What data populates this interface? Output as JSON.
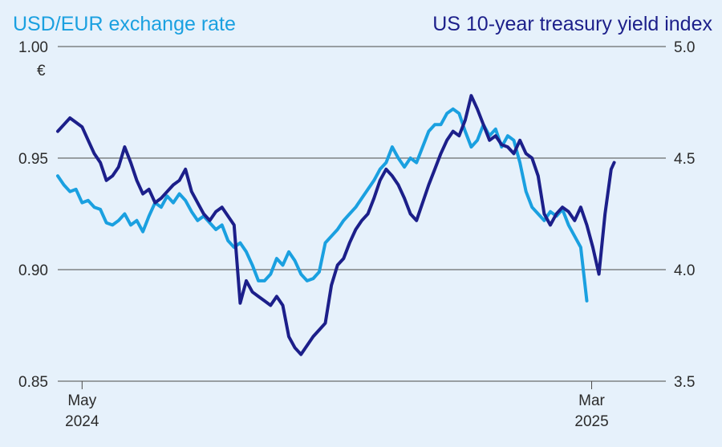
{
  "chart_data": {
    "type": "line",
    "left_title": "USD/EUR exchange rate",
    "right_title": "US 10-year treasury yield index",
    "left_unit": "€",
    "left_axis": {
      "min": 0.85,
      "max": 1.0,
      "ticks": [
        "1.00",
        "0.95",
        "0.90",
        "0.85"
      ]
    },
    "right_axis": {
      "min": 3.5,
      "max": 5.0,
      "ticks": [
        "5.0",
        "4.5",
        "4.0",
        "3.5"
      ]
    },
    "x_labels": [
      {
        "month": "May",
        "year": "2024",
        "t": 0.04
      },
      {
        "month": "Mar",
        "year": "2025",
        "t": 0.878
      }
    ],
    "grid": "horizontal",
    "colors": {
      "exchange": "#1aa0e0",
      "treasury": "#1c1f8a",
      "grid": "#4a4a4a",
      "background": "#e6f1fb"
    },
    "series": [
      {
        "name": "USD/EUR exchange rate",
        "axis": "left",
        "points": [
          [
            0.0,
            0.942
          ],
          [
            0.01,
            0.938
          ],
          [
            0.02,
            0.935
          ],
          [
            0.03,
            0.936
          ],
          [
            0.04,
            0.93
          ],
          [
            0.05,
            0.931
          ],
          [
            0.06,
            0.928
          ],
          [
            0.07,
            0.927
          ],
          [
            0.08,
            0.921
          ],
          [
            0.09,
            0.92
          ],
          [
            0.1,
            0.922
          ],
          [
            0.11,
            0.925
          ],
          [
            0.12,
            0.92
          ],
          [
            0.13,
            0.922
          ],
          [
            0.14,
            0.917
          ],
          [
            0.15,
            0.924
          ],
          [
            0.16,
            0.93
          ],
          [
            0.17,
            0.928
          ],
          [
            0.18,
            0.933
          ],
          [
            0.19,
            0.93
          ],
          [
            0.2,
            0.934
          ],
          [
            0.21,
            0.931
          ],
          [
            0.22,
            0.926
          ],
          [
            0.23,
            0.922
          ],
          [
            0.24,
            0.924
          ],
          [
            0.25,
            0.921
          ],
          [
            0.26,
            0.918
          ],
          [
            0.27,
            0.92
          ],
          [
            0.28,
            0.913
          ],
          [
            0.29,
            0.91
          ],
          [
            0.3,
            0.912
          ],
          [
            0.31,
            0.908
          ],
          [
            0.32,
            0.902
          ],
          [
            0.33,
            0.895
          ],
          [
            0.34,
            0.895
          ],
          [
            0.35,
            0.898
          ],
          [
            0.36,
            0.905
          ],
          [
            0.37,
            0.902
          ],
          [
            0.38,
            0.908
          ],
          [
            0.39,
            0.904
          ],
          [
            0.4,
            0.898
          ],
          [
            0.41,
            0.895
          ],
          [
            0.42,
            0.896
          ],
          [
            0.43,
            0.899
          ],
          [
            0.44,
            0.912
          ],
          [
            0.45,
            0.915
          ],
          [
            0.46,
            0.918
          ],
          [
            0.47,
            0.922
          ],
          [
            0.48,
            0.925
          ],
          [
            0.49,
            0.928
          ],
          [
            0.5,
            0.932
          ],
          [
            0.51,
            0.936
          ],
          [
            0.52,
            0.94
          ],
          [
            0.53,
            0.945
          ],
          [
            0.54,
            0.948
          ],
          [
            0.55,
            0.955
          ],
          [
            0.56,
            0.95
          ],
          [
            0.57,
            0.946
          ],
          [
            0.58,
            0.95
          ],
          [
            0.59,
            0.948
          ],
          [
            0.6,
            0.955
          ],
          [
            0.61,
            0.962
          ],
          [
            0.62,
            0.965
          ],
          [
            0.63,
            0.965
          ],
          [
            0.64,
            0.97
          ],
          [
            0.65,
            0.972
          ],
          [
            0.66,
            0.97
          ],
          [
            0.67,
            0.962
          ],
          [
            0.68,
            0.955
          ],
          [
            0.69,
            0.958
          ],
          [
            0.7,
            0.965
          ],
          [
            0.71,
            0.96
          ],
          [
            0.72,
            0.963
          ],
          [
            0.73,
            0.955
          ],
          [
            0.74,
            0.96
          ],
          [
            0.75,
            0.958
          ],
          [
            0.76,
            0.948
          ],
          [
            0.77,
            0.935
          ],
          [
            0.78,
            0.928
          ],
          [
            0.79,
            0.925
          ],
          [
            0.8,
            0.922
          ],
          [
            0.81,
            0.926
          ],
          [
            0.82,
            0.924
          ],
          [
            0.83,
            0.927
          ],
          [
            0.84,
            0.92
          ],
          [
            0.85,
            0.915
          ],
          [
            0.86,
            0.91
          ],
          [
            0.87,
            0.886
          ]
        ]
      },
      {
        "name": "US 10-year treasury yield index",
        "axis": "right",
        "points": [
          [
            0.0,
            4.62
          ],
          [
            0.01,
            4.65
          ],
          [
            0.02,
            4.68
          ],
          [
            0.03,
            4.66
          ],
          [
            0.04,
            4.64
          ],
          [
            0.05,
            4.58
          ],
          [
            0.06,
            4.52
          ],
          [
            0.07,
            4.48
          ],
          [
            0.08,
            4.4
          ],
          [
            0.09,
            4.42
          ],
          [
            0.1,
            4.46
          ],
          [
            0.11,
            4.55
          ],
          [
            0.12,
            4.48
          ],
          [
            0.13,
            4.4
          ],
          [
            0.14,
            4.34
          ],
          [
            0.15,
            4.36
          ],
          [
            0.16,
            4.3
          ],
          [
            0.17,
            4.32
          ],
          [
            0.18,
            4.35
          ],
          [
            0.19,
            4.38
          ],
          [
            0.2,
            4.4
          ],
          [
            0.21,
            4.45
          ],
          [
            0.22,
            4.35
          ],
          [
            0.23,
            4.3
          ],
          [
            0.24,
            4.25
          ],
          [
            0.25,
            4.22
          ],
          [
            0.26,
            4.26
          ],
          [
            0.27,
            4.28
          ],
          [
            0.28,
            4.24
          ],
          [
            0.29,
            4.2
          ],
          [
            0.3,
            3.85
          ],
          [
            0.31,
            3.95
          ],
          [
            0.32,
            3.9
          ],
          [
            0.33,
            3.88
          ],
          [
            0.34,
            3.86
          ],
          [
            0.35,
            3.84
          ],
          [
            0.36,
            3.88
          ],
          [
            0.37,
            3.84
          ],
          [
            0.38,
            3.7
          ],
          [
            0.39,
            3.65
          ],
          [
            0.4,
            3.62
          ],
          [
            0.41,
            3.66
          ],
          [
            0.42,
            3.7
          ],
          [
            0.43,
            3.73
          ],
          [
            0.44,
            3.76
          ],
          [
            0.45,
            3.93
          ],
          [
            0.46,
            4.02
          ],
          [
            0.47,
            4.05
          ],
          [
            0.48,
            4.12
          ],
          [
            0.49,
            4.18
          ],
          [
            0.5,
            4.22
          ],
          [
            0.51,
            4.25
          ],
          [
            0.52,
            4.32
          ],
          [
            0.53,
            4.4
          ],
          [
            0.54,
            4.45
          ],
          [
            0.55,
            4.42
          ],
          [
            0.56,
            4.38
          ],
          [
            0.57,
            4.32
          ],
          [
            0.58,
            4.25
          ],
          [
            0.59,
            4.22
          ],
          [
            0.6,
            4.3
          ],
          [
            0.61,
            4.38
          ],
          [
            0.62,
            4.45
          ],
          [
            0.63,
            4.52
          ],
          [
            0.64,
            4.58
          ],
          [
            0.65,
            4.62
          ],
          [
            0.66,
            4.6
          ],
          [
            0.67,
            4.67
          ],
          [
            0.68,
            4.78
          ],
          [
            0.69,
            4.72
          ],
          [
            0.7,
            4.65
          ],
          [
            0.71,
            4.58
          ],
          [
            0.72,
            4.6
          ],
          [
            0.73,
            4.56
          ],
          [
            0.74,
            4.55
          ],
          [
            0.75,
            4.52
          ],
          [
            0.76,
            4.58
          ],
          [
            0.77,
            4.52
          ],
          [
            0.78,
            4.5
          ],
          [
            0.79,
            4.42
          ],
          [
            0.8,
            4.25
          ],
          [
            0.81,
            4.2
          ],
          [
            0.82,
            4.25
          ],
          [
            0.83,
            4.28
          ],
          [
            0.84,
            4.26
          ],
          [
            0.85,
            4.22
          ],
          [
            0.86,
            4.28
          ],
          [
            0.87,
            4.2
          ],
          [
            0.88,
            4.1
          ],
          [
            0.89,
            3.98
          ],
          [
            0.9,
            4.25
          ],
          [
            0.91,
            4.45
          ],
          [
            0.915,
            4.48
          ]
        ]
      }
    ]
  }
}
